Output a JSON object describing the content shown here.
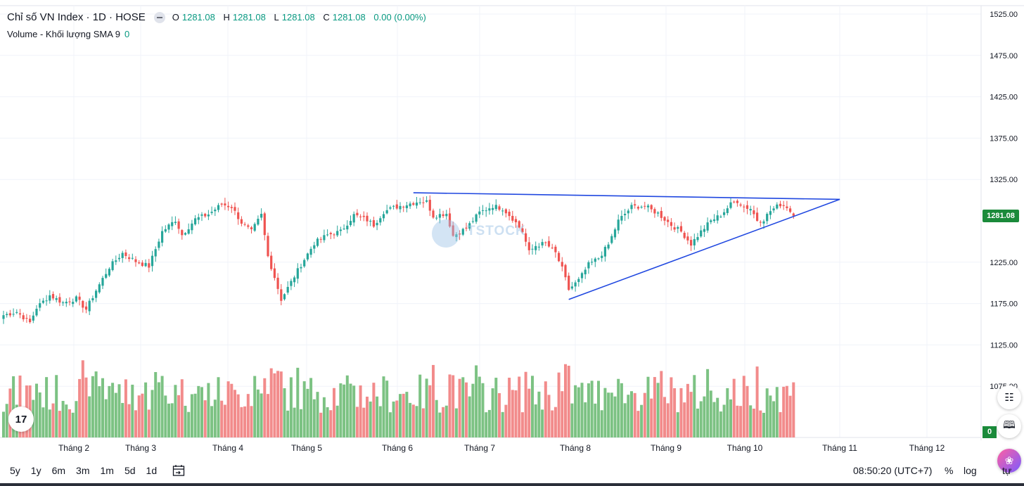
{
  "legend": {
    "title": "Chỉ số VN Index · 1D · HOSE",
    "o_label": "O",
    "o_val": "1281.08",
    "h_label": "H",
    "h_val": "1281.08",
    "l_label": "L",
    "l_val": "1281.08",
    "c_label": "C",
    "c_val": "1281.08",
    "change": "0.00 (0.00%)"
  },
  "volume_legend": {
    "label": "Volume - Khối lượng SMA 9",
    "value": "0"
  },
  "watermark": "TSTOCK",
  "price_badge": "1281.08",
  "volume_badge": "0",
  "bottom_bar": {
    "ranges": [
      "5y",
      "1y",
      "6m",
      "3m",
      "1m",
      "5d",
      "1d"
    ],
    "time": "08:50:20 (UTC+7)",
    "percent": "%",
    "log": "log",
    "auto": "tự"
  },
  "colors": {
    "up": "#26a69a",
    "down": "#ef5350",
    "up_bar": "#7cc283",
    "down_bar": "#f28b8b",
    "trendline": "#1f47e0",
    "badge": "#1a8a3a"
  },
  "chart_data": {
    "type": "candlestick",
    "title": "Chỉ số VN Index · 1D · HOSE",
    "y_ticks": [
      "1525.00",
      "1475.00",
      "1425.00",
      "1375.00",
      "1325.00",
      "1225.00",
      "1175.00",
      "1125.00",
      "1075.00"
    ],
    "ylim": [
      1062,
      1528
    ],
    "last_price": 1281.08,
    "x_ticks": [
      "Tháng 2",
      "Tháng 3",
      "Tháng 4",
      "Tháng 5",
      "Tháng 6",
      "Tháng 7",
      "Tháng 8",
      "Tháng 9",
      "Tháng 10",
      "Tháng 11",
      "Tháng 12"
    ],
    "close_path": [
      [
        0,
        1161
      ],
      [
        4,
        1165
      ],
      [
        8,
        1152
      ],
      [
        10,
        1170
      ],
      [
        14,
        1185
      ],
      [
        18,
        1176
      ],
      [
        22,
        1181
      ],
      [
        25,
        1168
      ],
      [
        28,
        1191
      ],
      [
        32,
        1219
      ],
      [
        36,
        1236
      ],
      [
        40,
        1226
      ],
      [
        44,
        1220
      ],
      [
        48,
        1262
      ],
      [
        52,
        1276
      ],
      [
        54,
        1258
      ],
      [
        58,
        1277
      ],
      [
        62,
        1283
      ],
      [
        66,
        1295
      ],
      [
        69,
        1292
      ],
      [
        72,
        1273
      ],
      [
        75,
        1262
      ],
      [
        78,
        1282
      ],
      [
        80,
        1232
      ],
      [
        82,
        1207
      ],
      [
        84,
        1180
      ],
      [
        86,
        1194
      ],
      [
        90,
        1222
      ],
      [
        94,
        1248
      ],
      [
        98,
        1258
      ],
      [
        102,
        1262
      ],
      [
        106,
        1282
      ],
      [
        110,
        1276
      ],
      [
        112,
        1270
      ],
      [
        115,
        1286
      ],
      [
        118,
        1291
      ],
      [
        122,
        1295
      ],
      [
        126,
        1299
      ],
      [
        128,
        1298
      ],
      [
        130,
        1281
      ],
      [
        134,
        1284
      ],
      [
        136,
        1257
      ],
      [
        140,
        1266
      ],
      [
        144,
        1285
      ],
      [
        148,
        1293
      ],
      [
        151,
        1290
      ],
      [
        154,
        1278
      ],
      [
        157,
        1262
      ],
      [
        159,
        1237
      ],
      [
        161,
        1245
      ],
      [
        164,
        1248
      ],
      [
        167,
        1236
      ],
      [
        169,
        1217
      ],
      [
        171,
        1192
      ],
      [
        174,
        1203
      ],
      [
        177,
        1222
      ],
      [
        180,
        1230
      ],
      [
        183,
        1246
      ],
      [
        186,
        1275
      ],
      [
        190,
        1292
      ],
      [
        194,
        1293
      ],
      [
        196,
        1288
      ],
      [
        198,
        1284
      ],
      [
        202,
        1270
      ],
      [
        205,
        1262
      ],
      [
        208,
        1247
      ],
      [
        211,
        1262
      ],
      [
        214,
        1275
      ],
      [
        217,
        1282
      ],
      [
        220,
        1295
      ],
      [
        222,
        1299
      ],
      [
        224,
        1292
      ],
      [
        226,
        1290
      ],
      [
        228,
        1276
      ],
      [
        230,
        1277
      ],
      [
        232,
        1287
      ],
      [
        235,
        1295
      ],
      [
        237,
        1292
      ],
      [
        239,
        1281
      ]
    ],
    "volume_ylim": [
      0,
      25
    ],
    "trendlines": [
      {
        "points": [
          [
            124,
            1309
          ],
          [
            253,
            1301
          ]
        ]
      },
      {
        "points": [
          [
            171,
            1180
          ],
          [
            253,
            1301
          ]
        ]
      }
    ]
  }
}
